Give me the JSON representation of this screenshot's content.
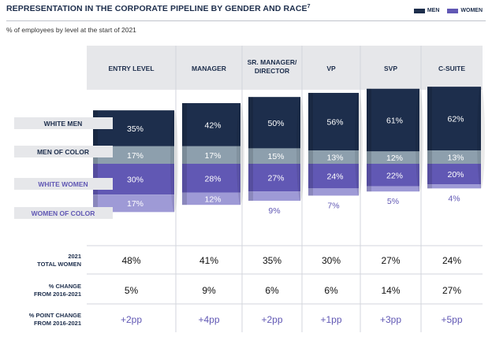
{
  "header": {
    "title": "REPRESENTATION IN THE CORPORATE PIPELINE BY GENDER AND RACE",
    "footnote_mark": "7",
    "subtitle": "% of employees by level at the start of 2021"
  },
  "legend": {
    "men_label": "MEN",
    "women_label": "WOMEN",
    "men_color": "#1d2e4c",
    "women_color": "#6158b4"
  },
  "chart_data": {
    "type": "bar",
    "stacked": true,
    "categories": [
      "ENTRY LEVEL",
      "MANAGER",
      "SR. MANAGER/ DIRECTOR",
      "VP",
      "SVP",
      "C-SUITE"
    ],
    "category_lines": [
      [
        "ENTRY LEVEL"
      ],
      [
        "MANAGER"
      ],
      [
        "SR. MANAGER/",
        "DIRECTOR"
      ],
      [
        "VP"
      ],
      [
        "SVP"
      ],
      [
        "C-SUITE"
      ]
    ],
    "series": [
      {
        "name": "WHITE MEN",
        "values": [
          35,
          42,
          50,
          56,
          61,
          62
        ],
        "labels": [
          "35%",
          "42%",
          "50%",
          "56%",
          "61%",
          "62%"
        ],
        "color": "#1d2e4c"
      },
      {
        "name": "MEN OF COLOR",
        "values": [
          17,
          17,
          15,
          13,
          12,
          13
        ],
        "labels": [
          "17%",
          "17%",
          "15%",
          "13%",
          "12%",
          "13%"
        ],
        "color": "#8d9fad"
      },
      {
        "name": "WHITE WOMEN",
        "values": [
          30,
          28,
          27,
          24,
          22,
          20
        ],
        "labels": [
          "30%",
          "28%",
          "27%",
          "24%",
          "22%",
          "20%"
        ],
        "color": "#6158b4"
      },
      {
        "name": "WOMEN OF COLOR",
        "values": [
          17,
          12,
          9,
          7,
          5,
          4
        ],
        "labels": [
          "17%",
          "12%",
          "9%",
          "7%",
          "5%",
          "4%"
        ],
        "color": "#9e9ad6"
      }
    ],
    "summary_rows": [
      {
        "label_lines": [
          "2021",
          "TOTAL WOMEN"
        ],
        "values": [
          "48%",
          "41%",
          "35%",
          "30%",
          "27%",
          "24%"
        ],
        "style": "dark"
      },
      {
        "label_lines": [
          "% CHANGE",
          "FROM 2016-2021"
        ],
        "values": [
          "5%",
          "9%",
          "6%",
          "6%",
          "14%",
          "27%"
        ],
        "style": "dark"
      },
      {
        "label_lines": [
          "% POINT CHANGE",
          "FROM 2016-2021"
        ],
        "values": [
          "+2pp",
          "+4pp",
          "+2pp",
          "+1pp",
          "+3pp",
          "+5pp"
        ],
        "style": "accent"
      }
    ],
    "xlabel": "",
    "ylabel": "",
    "ylim": [
      0,
      100
    ],
    "grid": false,
    "legend_position": "top-right"
  }
}
